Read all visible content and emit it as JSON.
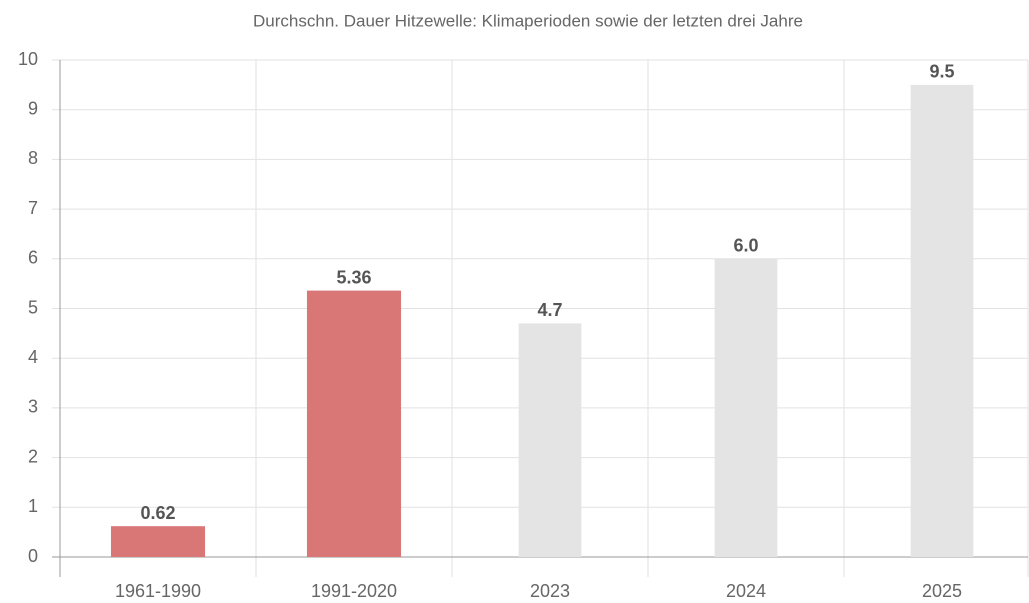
{
  "chart_data": {
    "type": "bar",
    "title": "Durchschn. Dauer Hitzewelle: Klimaperioden sowie der letzten drei Jahre",
    "categories": [
      "1961-1990",
      "1991-2020",
      "2023",
      "2024",
      "2025"
    ],
    "values": [
      0.62,
      5.36,
      4.7,
      6.0,
      9.5
    ],
    "value_labels": [
      "0.62",
      "5.36",
      "4.7",
      "6.0",
      "9.5"
    ],
    "colors": [
      "#d97777",
      "#d97777",
      "#e4e4e4",
      "#e4e4e4",
      "#e4e4e4"
    ],
    "ylim": [
      0,
      10
    ],
    "yticks": [
      0,
      1,
      2,
      3,
      4,
      5,
      6,
      7,
      8,
      9,
      10
    ],
    "grid": true
  }
}
